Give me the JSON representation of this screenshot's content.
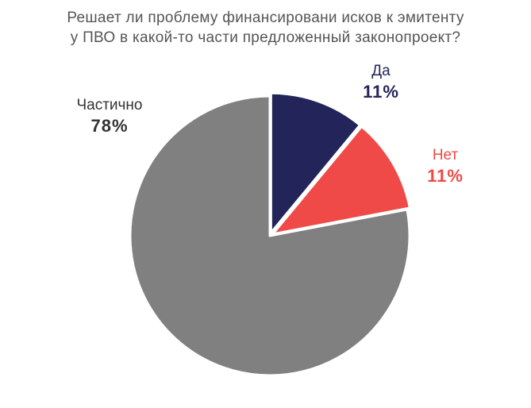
{
  "chart_data": {
    "type": "pie",
    "title_lines": [
      "Решает ли проблему финансировани исков к эмитенту",
      "у ПВО в какой-то части предложенный законопроект?"
    ],
    "slices": [
      {
        "label": "Да",
        "value": 11,
        "value_label": "11%",
        "color": "#232459"
      },
      {
        "label": "Нет",
        "value": 11,
        "value_label": "11%",
        "color": "#ef4a47"
      },
      {
        "label": "Частично",
        "value": 78,
        "value_label": "78%",
        "color": "#808080"
      }
    ],
    "name_colors": {
      "Да": "#232459",
      "Нет": "#ef4a47",
      "Частично": "#333333"
    },
    "exploded_slices": [
      "Да",
      "Нет"
    ]
  }
}
